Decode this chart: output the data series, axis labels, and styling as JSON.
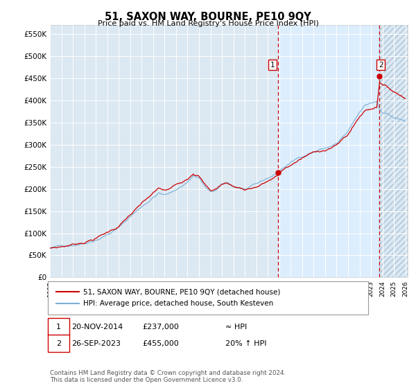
{
  "title": "51, SAXON WAY, BOURNE, PE10 9QY",
  "subtitle": "Price paid vs. HM Land Registry's House Price Index (HPI)",
  "ylabel_ticks": [
    "£0",
    "£50K",
    "£100K",
    "£150K",
    "£200K",
    "£250K",
    "£300K",
    "£350K",
    "£400K",
    "£450K",
    "£500K",
    "£550K"
  ],
  "ytick_values": [
    0,
    50000,
    100000,
    150000,
    200000,
    250000,
    300000,
    350000,
    400000,
    450000,
    500000,
    550000
  ],
  "ylim": [
    0,
    570000
  ],
  "xlim_start": 1995.3,
  "xlim_end": 2026.2,
  "hpi_color": "#7ab0d4",
  "price_color": "#cc0000",
  "marker1_x": 2014.9,
  "marker1_y": 237000,
  "marker2_x": 2023.75,
  "marker2_y": 455000,
  "annotation1": [
    "1",
    "20-NOV-2014",
    "£237,000",
    "≈ HPI"
  ],
  "annotation2": [
    "2",
    "26-SEP-2023",
    "£455,000",
    "20% ↑ HPI"
  ],
  "legend_line1": "51, SAXON WAY, BOURNE, PE10 9QY (detached house)",
  "legend_line2": "HPI: Average price, detached house, South Kesteven",
  "footnote": "Contains HM Land Registry data © Crown copyright and database right 2024.\nThis data is licensed under the Open Government Licence v3.0.",
  "background_color": "#ffffff",
  "plot_bg_color": "#dce8f2",
  "highlight_color": "#ddeeff",
  "grid_color": "#ffffff"
}
